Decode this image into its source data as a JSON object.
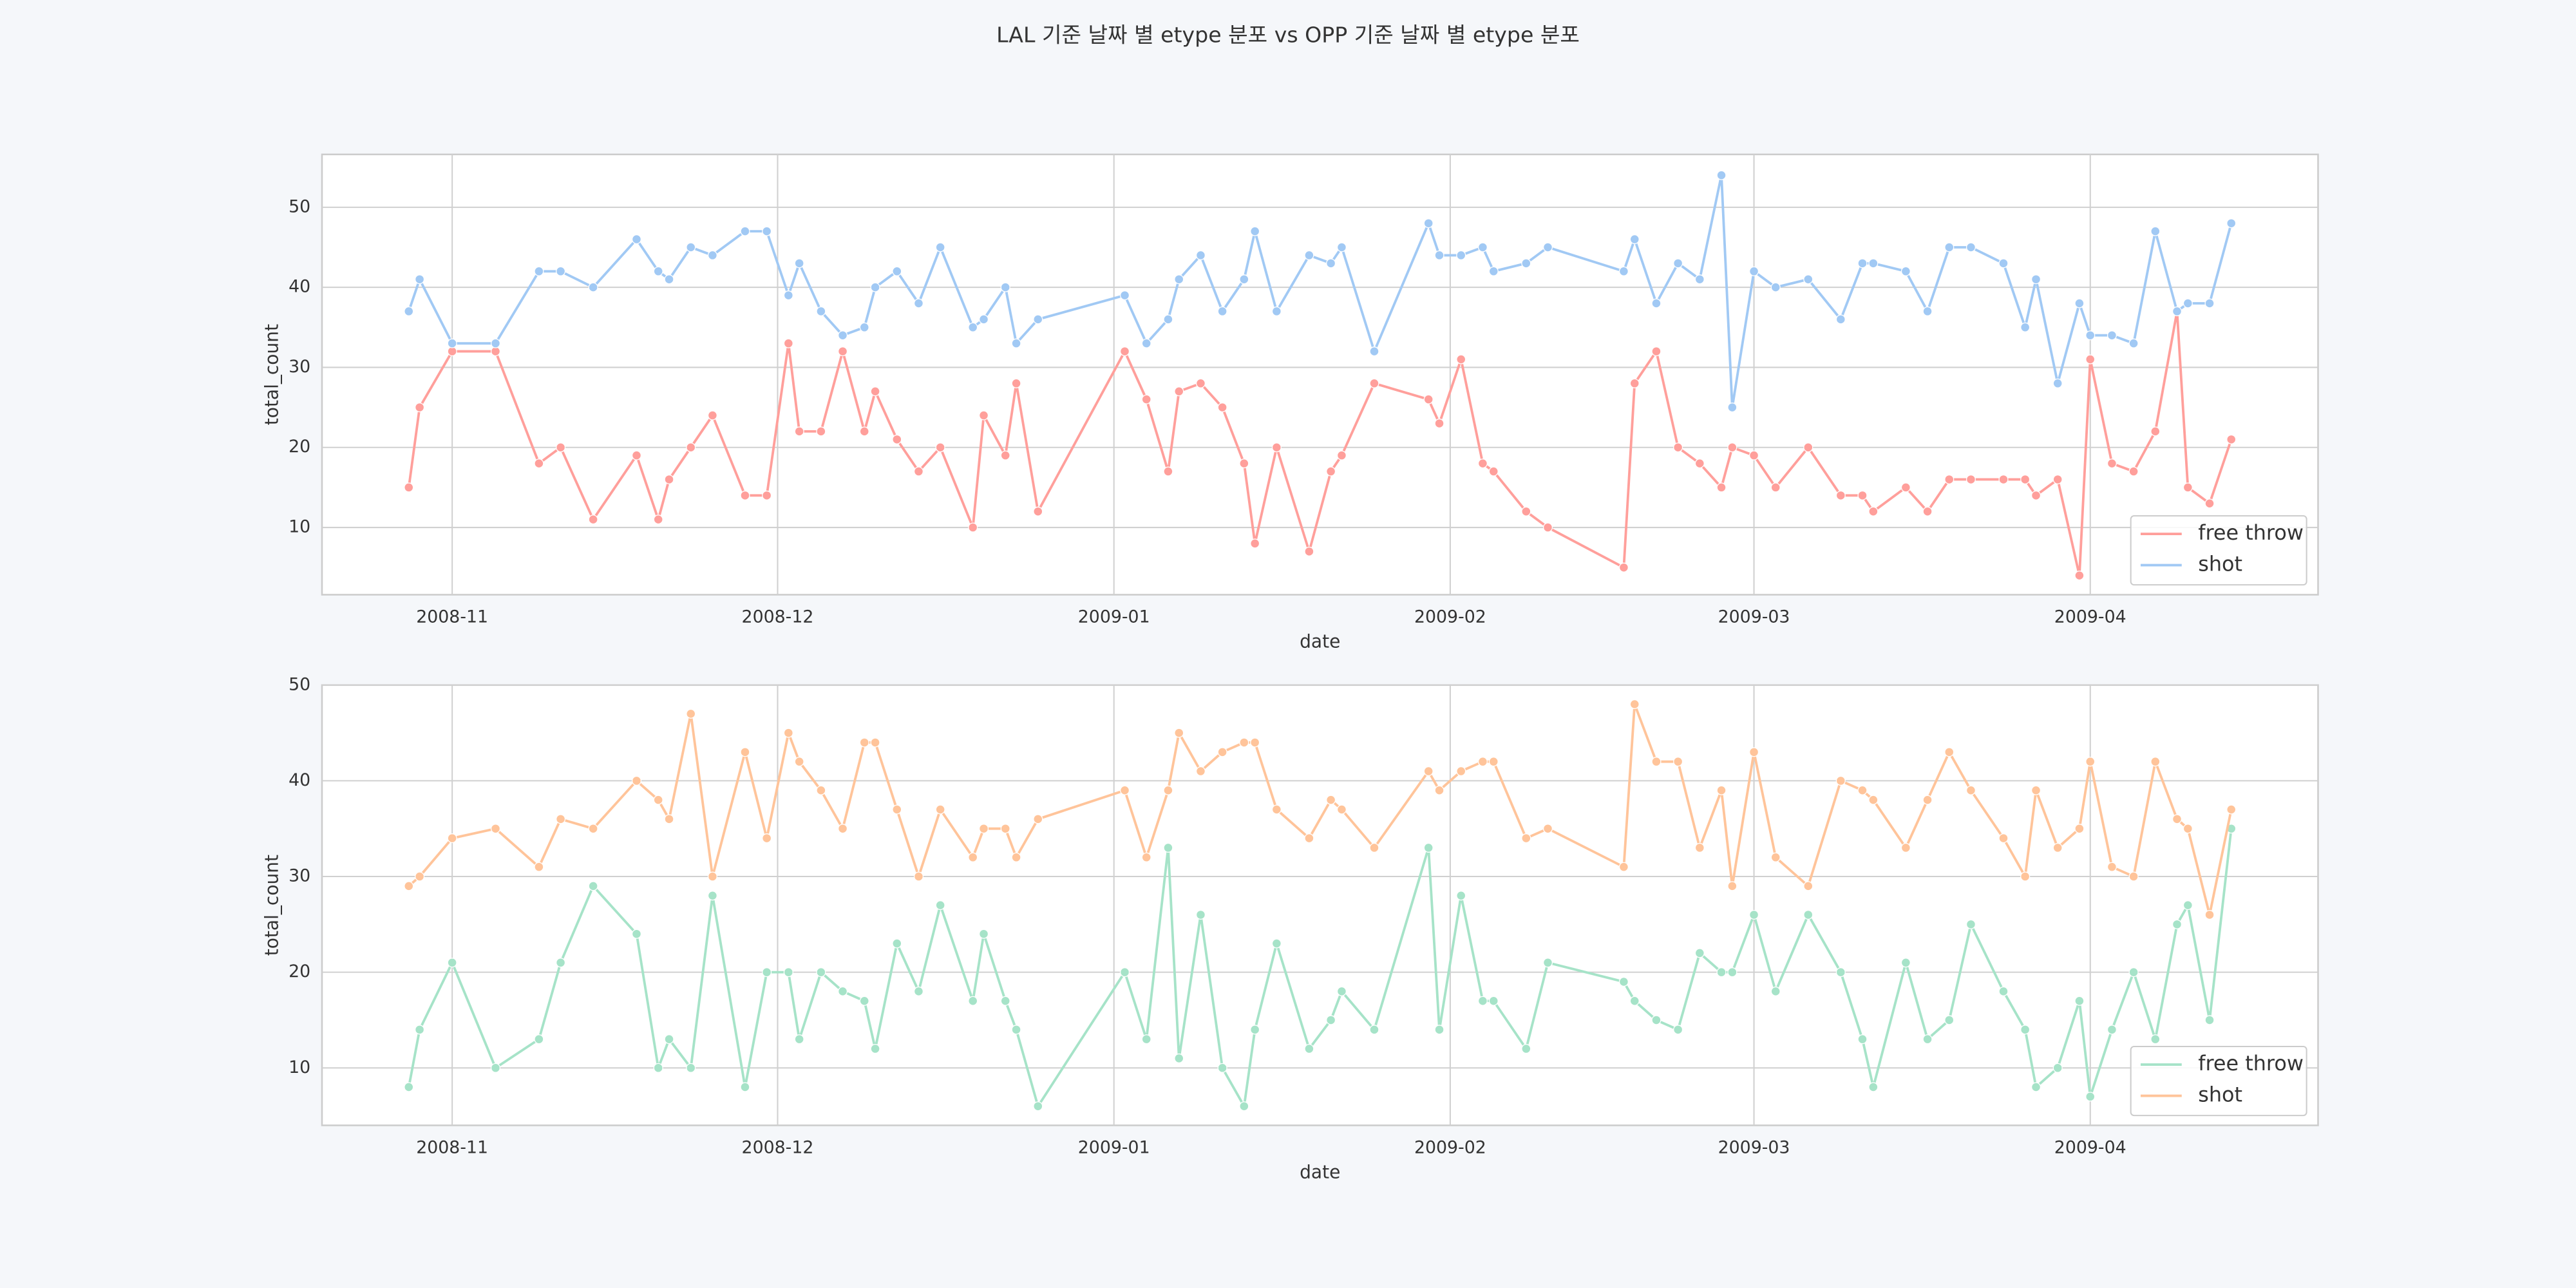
{
  "title": "LAL 기준 날짜 별 etype 분포 vs OPP 기준 날짜 별 etype 분포",
  "chart_data": [
    {
      "type": "line",
      "xlabel": "date",
      "ylabel": "total_count",
      "grid": true,
      "legend": "lower right",
      "x": [
        "2008-10-28",
        "2008-10-29",
        "2008-11-01",
        "2008-11-05",
        "2008-11-09",
        "2008-11-11",
        "2008-11-14",
        "2008-11-18",
        "2008-11-20",
        "2008-11-21",
        "2008-11-23",
        "2008-11-25",
        "2008-11-28",
        "2008-11-30",
        "2008-12-02",
        "2008-12-03",
        "2008-12-05",
        "2008-12-07",
        "2008-12-09",
        "2008-12-10",
        "2008-12-12",
        "2008-12-14",
        "2008-12-16",
        "2008-12-19",
        "2008-12-20",
        "2008-12-22",
        "2008-12-23",
        "2008-12-25",
        "2009-01-02",
        "2009-01-04",
        "2009-01-06",
        "2009-01-07",
        "2009-01-09",
        "2009-01-11",
        "2009-01-13",
        "2009-01-14",
        "2009-01-16",
        "2009-01-19",
        "2009-01-21",
        "2009-01-22",
        "2009-01-25",
        "2009-01-30",
        "2009-01-31",
        "2009-02-02",
        "2009-02-04",
        "2009-02-05",
        "2009-02-08",
        "2009-02-10",
        "2009-02-17",
        "2009-02-18",
        "2009-02-20",
        "2009-02-22",
        "2009-02-24",
        "2009-02-26",
        "2009-02-27",
        "2009-03-01",
        "2009-03-03",
        "2009-03-06",
        "2009-03-09",
        "2009-03-11",
        "2009-03-12",
        "2009-03-15",
        "2009-03-17",
        "2009-03-19",
        "2009-03-21",
        "2009-03-24",
        "2009-03-26",
        "2009-03-27",
        "2009-03-29",
        "2009-03-31",
        "2009-04-01",
        "2009-04-03",
        "2009-04-05",
        "2009-04-07",
        "2009-04-09",
        "2009-04-10",
        "2009-04-12",
        "2009-04-14"
      ],
      "series": [
        {
          "name": "free throw",
          "color": "#ff9f9b",
          "values": [
            15,
            25,
            32,
            32,
            18,
            20,
            11,
            19,
            11,
            16,
            20,
            24,
            14,
            14,
            33,
            22,
            22,
            32,
            22,
            27,
            21,
            17,
            20,
            10,
            24,
            19,
            28,
            12,
            32,
            26,
            17,
            27,
            28,
            25,
            18,
            8,
            20,
            7,
            17,
            19,
            28,
            26,
            23,
            31,
            18,
            17,
            12,
            10,
            5,
            28,
            32,
            20,
            18,
            15,
            20,
            19,
            15,
            20,
            14,
            14,
            12,
            15,
            12,
            16,
            16,
            16,
            16,
            14,
            16,
            4,
            31,
            18,
            17,
            22,
            37,
            15,
            13,
            21
          ]
        },
        {
          "name": "shot",
          "color": "#a1c9f4",
          "values": [
            37,
            41,
            33,
            33,
            42,
            42,
            40,
            46,
            42,
            41,
            45,
            44,
            47,
            47,
            39,
            43,
            37,
            34,
            35,
            40,
            42,
            38,
            45,
            35,
            36,
            40,
            33,
            36,
            39,
            33,
            36,
            41,
            44,
            37,
            41,
            47,
            37,
            44,
            43,
            45,
            32,
            48,
            44,
            44,
            45,
            42,
            43,
            45,
            42,
            46,
            38,
            43,
            41,
            54,
            25,
            42,
            40,
            41,
            36,
            43,
            43,
            42,
            37,
            45,
            45,
            43,
            35,
            41,
            28,
            38,
            34,
            34,
            33,
            47,
            37,
            38,
            38,
            48
          ]
        }
      ],
      "xlim": [
        "2008-10-20",
        "2009-04-22"
      ],
      "xticks": [
        "2008-11",
        "2008-12",
        "2009-01",
        "2009-02",
        "2009-03",
        "2009-04"
      ],
      "ylim": [
        1.6,
        56.6
      ],
      "yticks": [
        10,
        20,
        30,
        40,
        50
      ]
    },
    {
      "type": "line",
      "xlabel": "date",
      "ylabel": "total_count",
      "grid": true,
      "legend": "lower right",
      "x": [
        "2008-10-28",
        "2008-10-29",
        "2008-11-01",
        "2008-11-05",
        "2008-11-09",
        "2008-11-11",
        "2008-11-14",
        "2008-11-18",
        "2008-11-20",
        "2008-11-21",
        "2008-11-23",
        "2008-11-25",
        "2008-11-28",
        "2008-11-30",
        "2008-12-02",
        "2008-12-03",
        "2008-12-05",
        "2008-12-07",
        "2008-12-09",
        "2008-12-10",
        "2008-12-12",
        "2008-12-14",
        "2008-12-16",
        "2008-12-19",
        "2008-12-20",
        "2008-12-22",
        "2008-12-23",
        "2008-12-25",
        "2009-01-02",
        "2009-01-04",
        "2009-01-06",
        "2009-01-07",
        "2009-01-09",
        "2009-01-11",
        "2009-01-13",
        "2009-01-14",
        "2009-01-16",
        "2009-01-19",
        "2009-01-21",
        "2009-01-22",
        "2009-01-25",
        "2009-01-30",
        "2009-01-31",
        "2009-02-02",
        "2009-02-04",
        "2009-02-05",
        "2009-02-08",
        "2009-02-10",
        "2009-02-17",
        "2009-02-18",
        "2009-02-20",
        "2009-02-22",
        "2009-02-24",
        "2009-02-26",
        "2009-02-27",
        "2009-03-01",
        "2009-03-03",
        "2009-03-06",
        "2009-03-09",
        "2009-03-11",
        "2009-03-12",
        "2009-03-15",
        "2009-03-17",
        "2009-03-19",
        "2009-03-21",
        "2009-03-24",
        "2009-03-26",
        "2009-03-27",
        "2009-03-29",
        "2009-03-31",
        "2009-04-01",
        "2009-04-03",
        "2009-04-05",
        "2009-04-07",
        "2009-04-09",
        "2009-04-10",
        "2009-04-12",
        "2009-04-14"
      ],
      "series": [
        {
          "name": "free throw",
          "color": "#a6e3c8",
          "values": [
            8,
            14,
            21,
            10,
            13,
            21,
            29,
            24,
            10,
            13,
            10,
            28,
            8,
            20,
            20,
            13,
            20,
            18,
            17,
            12,
            23,
            18,
            27,
            17,
            24,
            17,
            14,
            6,
            20,
            13,
            33,
            11,
            26,
            10,
            6,
            14,
            23,
            12,
            15,
            18,
            14,
            33,
            14,
            28,
            17,
            17,
            12,
            21,
            19,
            17,
            15,
            14,
            22,
            20,
            20,
            26,
            18,
            26,
            20,
            13,
            8,
            21,
            13,
            15,
            25,
            18,
            14,
            8,
            10,
            17,
            7,
            14,
            20,
            13,
            25,
            27,
            15,
            35
          ]
        },
        {
          "name": "shot",
          "color": "#ffc49a",
          "values": [
            29,
            30,
            34,
            35,
            31,
            36,
            35,
            40,
            38,
            36,
            47,
            30,
            43,
            34,
            45,
            42,
            39,
            35,
            44,
            44,
            37,
            30,
            37,
            32,
            35,
            35,
            32,
            36,
            39,
            32,
            39,
            45,
            41,
            43,
            44,
            44,
            37,
            34,
            38,
            37,
            33,
            41,
            39,
            41,
            42,
            42,
            34,
            35,
            31,
            48,
            42,
            42,
            33,
            39,
            29,
            43,
            32,
            29,
            40,
            39,
            38,
            33,
            38,
            43,
            39,
            34,
            30,
            39,
            33,
            35,
            42,
            31,
            30,
            42,
            36,
            35,
            26,
            37
          ]
        }
      ],
      "xlim": [
        "2008-10-20",
        "2009-04-22"
      ],
      "xticks": [
        "2008-11",
        "2008-12",
        "2009-01",
        "2009-02",
        "2009-03",
        "2009-04"
      ],
      "ylim": [
        4,
        50
      ],
      "yticks": [
        10,
        20,
        30,
        40,
        50
      ]
    }
  ]
}
